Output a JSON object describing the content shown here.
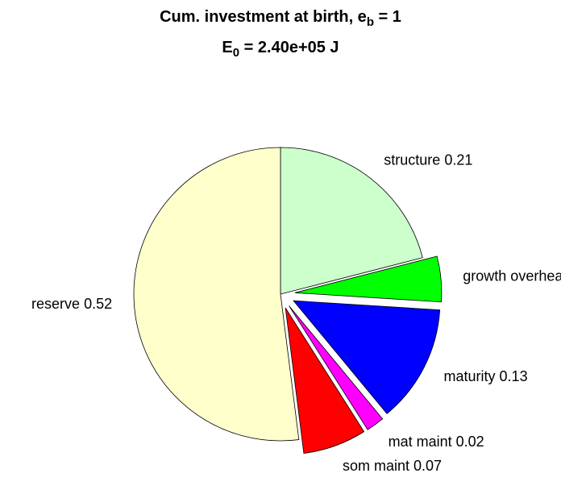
{
  "chart_data": {
    "type": "pie",
    "title": [
      "Cum. investment at birth, e",
      "b",
      " = 1"
    ],
    "subtitle": [
      "E",
      "0",
      " = 2.40e+05 J"
    ],
    "categories": [
      "structure",
      "growth overhead",
      "maturity",
      "mat maint",
      "som maint",
      "reserve"
    ],
    "values": [
      0.21,
      0.05,
      0.13,
      0.02,
      0.07,
      0.52
    ],
    "colors": [
      "#ccffcc",
      "#00ff00",
      "#0000ff",
      "#ff00ff",
      "#ff0000",
      "#ffffcc"
    ],
    "explode": [
      false,
      true,
      true,
      true,
      true,
      false
    ]
  }
}
